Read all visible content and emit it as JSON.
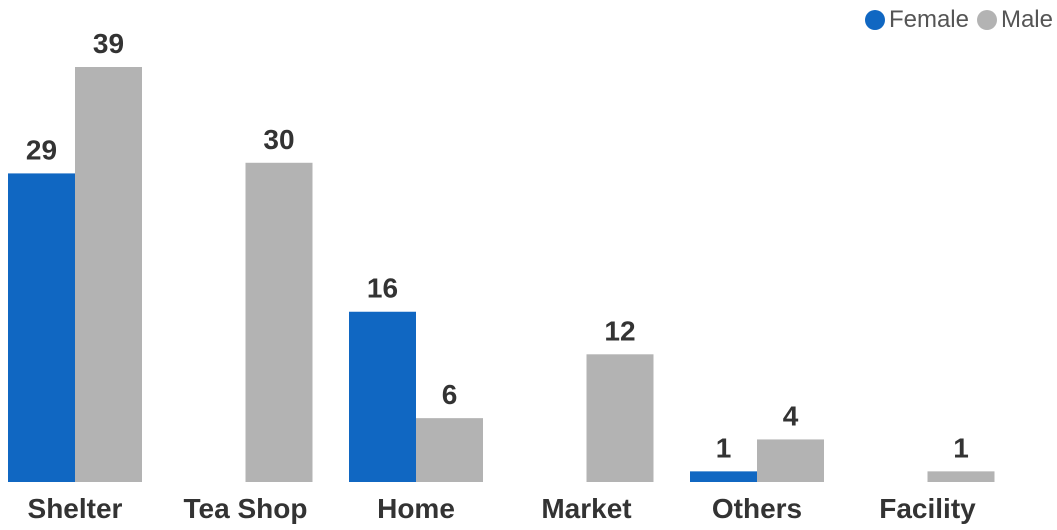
{
  "chart_data": {
    "type": "bar",
    "categories": [
      "Shelter",
      "Tea Shop",
      "Home",
      "Market",
      "Others",
      "Facility"
    ],
    "series": [
      {
        "name": "Female",
        "values": [
          29,
          0,
          16,
          0,
          1,
          0
        ],
        "color": "#1067c2",
        "show_labels": [
          true,
          false,
          true,
          false,
          true,
          false
        ]
      },
      {
        "name": "Male",
        "values": [
          39,
          30,
          6,
          12,
          4,
          1
        ],
        "color": "#b3b3b3",
        "show_labels": [
          true,
          true,
          true,
          true,
          true,
          true
        ]
      }
    ],
    "title": "",
    "xlabel": "",
    "ylabel": "",
    "ylim": [
      0,
      39
    ],
    "grid": false,
    "legend_position": "top-right"
  }
}
